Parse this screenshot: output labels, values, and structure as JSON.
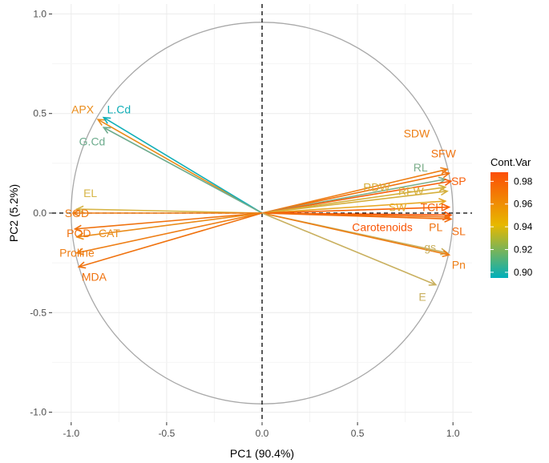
{
  "chart_data": {
    "type": "biplot",
    "xlabel": "PC1 (90.4%)",
    "ylabel": "PC2 (5.2%)",
    "xlim": [
      -1.1,
      1.1
    ],
    "ylim": [
      -1.05,
      1.05
    ],
    "xticks": [
      -1.0,
      -0.5,
      0.0,
      0.5,
      1.0
    ],
    "xtick_labels": [
      "-1.0",
      "-0.5",
      "0.0",
      "0.5",
      "1.0"
    ],
    "yticks": [
      -1.0,
      -0.5,
      0.0,
      0.5,
      1.0
    ],
    "ytick_labels": [
      "-1.0",
      "-0.5",
      "0.0",
      "0.5",
      "1.0"
    ],
    "grid": true,
    "unit_circle": true,
    "reference_lines": [
      "x=0",
      "y=0"
    ],
    "legend": {
      "title": "Cont.Var",
      "placement": "right",
      "range": [
        0.895,
        0.988
      ],
      "ticks": [
        0.9,
        0.92,
        0.94,
        0.96,
        0.98
      ],
      "tick_labels": [
        "0.90",
        "0.92",
        "0.94",
        "0.96",
        "0.98"
      ],
      "gradient_colors": [
        "#00AFBB",
        "#E7B800",
        "#FC4E07"
      ]
    },
    "variables": [
      {
        "name": "APX",
        "x": -0.86,
        "y": 0.47,
        "contrib": 0.963,
        "color": "#EA8C1A",
        "lx": -0.94,
        "ly": 0.52
      },
      {
        "name": "L.Cd",
        "x": -0.83,
        "y": 0.48,
        "contrib": 0.905,
        "color": "#12AFB8",
        "lx": -0.75,
        "ly": 0.52
      },
      {
        "name": "G.Cd",
        "x": -0.83,
        "y": 0.43,
        "contrib": 0.912,
        "color": "#6EAC8E",
        "lx": -0.89,
        "ly": 0.36
      },
      {
        "name": "EL",
        "x": -0.97,
        "y": 0.02,
        "contrib": 0.946,
        "color": "#D7B648",
        "lx": -0.9,
        "ly": 0.1
      },
      {
        "name": "SOD",
        "x": -0.99,
        "y": 0.0,
        "contrib": 0.972,
        "color": "#EF7A12",
        "lx": -0.97,
        "ly": 0.0
      },
      {
        "name": "POD",
        "x": -0.98,
        "y": -0.08,
        "contrib": 0.975,
        "color": "#F0720E",
        "lx": -0.96,
        "ly": -0.1
      },
      {
        "name": "CAT",
        "x": -0.97,
        "y": -0.12,
        "contrib": 0.962,
        "color": "#EA8C1A",
        "lx": -0.8,
        "ly": -0.1
      },
      {
        "name": "Proline",
        "x": -0.97,
        "y": -0.2,
        "contrib": 0.968,
        "color": "#EE7E15",
        "lx": -0.97,
        "ly": -0.2
      },
      {
        "name": "MDA",
        "x": -0.96,
        "y": -0.27,
        "contrib": 0.975,
        "color": "#F0720E",
        "lx": -0.88,
        "ly": -0.32
      },
      {
        "name": "SDW",
        "x": 0.97,
        "y": 0.22,
        "contrib": 0.97,
        "color": "#ED7E14",
        "lx": 0.81,
        "ly": 0.4
      },
      {
        "name": "SFW",
        "x": 0.98,
        "y": 0.2,
        "contrib": 0.975,
        "color": "#F0720E",
        "lx": 0.95,
        "ly": 0.3
      },
      {
        "name": "RL",
        "x": 0.96,
        "y": 0.17,
        "contrib": 0.925,
        "color": "#7DAE8B",
        "lx": 0.83,
        "ly": 0.23
      },
      {
        "name": "SP",
        "x": 0.99,
        "y": 0.16,
        "contrib": 0.985,
        "color": "#F75F0B",
        "lx": 1.03,
        "ly": 0.16
      },
      {
        "name": "RDW",
        "x": 0.96,
        "y": 0.13,
        "contrib": 0.955,
        "color": "#D5AF3C",
        "lx": 0.6,
        "ly": 0.13
      },
      {
        "name": "RFW",
        "x": 0.97,
        "y": 0.11,
        "contrib": 0.955,
        "color": "#D5AF3C",
        "lx": 0.78,
        "ly": 0.11
      },
      {
        "name": "SW",
        "x": 0.96,
        "y": 0.06,
        "contrib": 0.96,
        "color": "#E7A825",
        "lx": 0.71,
        "ly": 0.03
      },
      {
        "name": "TCH",
        "x": 0.98,
        "y": 0.03,
        "contrib": 0.983,
        "color": "#F76208",
        "lx": 0.89,
        "ly": 0.03
      },
      {
        "name": "Carotenoids",
        "x": 0.99,
        "y": -0.01,
        "contrib": 0.988,
        "color": "#FA5606",
        "lx": 0.63,
        "ly": -0.07
      },
      {
        "name": "PL",
        "x": 0.98,
        "y": -0.02,
        "contrib": 0.975,
        "color": "#F0720E",
        "lx": 0.91,
        "ly": -0.07
      },
      {
        "name": "SL",
        "x": 0.99,
        "y": -0.03,
        "contrib": 0.978,
        "color": "#F26B0C",
        "lx": 1.03,
        "ly": -0.09
      },
      {
        "name": "gs",
        "x": 0.97,
        "y": -0.2,
        "contrib": 0.94,
        "color": "#C9B05F",
        "lx": 0.88,
        "ly": -0.17
      },
      {
        "name": "Pn",
        "x": 0.98,
        "y": -0.21,
        "contrib": 0.968,
        "color": "#EE7E15",
        "lx": 1.03,
        "ly": -0.26
      },
      {
        "name": "E",
        "x": 0.91,
        "y": -0.36,
        "contrib": 0.938,
        "color": "#C9B05F",
        "lx": 0.84,
        "ly": -0.42
      }
    ]
  }
}
